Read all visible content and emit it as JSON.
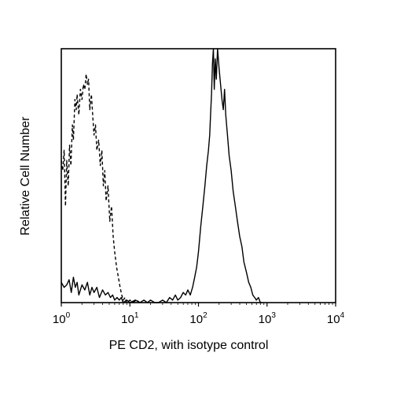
{
  "chart_data": {
    "type": "line",
    "title": "",
    "xlabel": "PE CD2, with isotype control",
    "ylabel": "Relative Cell Number",
    "x_scale": "log",
    "xlim": [
      1,
      10000
    ],
    "ylim": [
      0,
      100
    ],
    "x_ticks": [
      {
        "base": "10",
        "exp": "0",
        "value": 1
      },
      {
        "base": "10",
        "exp": "1",
        "value": 10
      },
      {
        "base": "10",
        "exp": "2",
        "value": 100
      },
      {
        "base": "10",
        "exp": "3",
        "value": 1000
      },
      {
        "base": "10",
        "exp": "4",
        "value": 10000
      }
    ],
    "grid": false,
    "legend": "none",
    "series": [
      {
        "style": "dashed",
        "color": "#000000",
        "x": [
          1.0,
          1.05,
          1.1,
          1.15,
          1.2,
          1.26,
          1.32,
          1.38,
          1.45,
          1.5,
          1.58,
          1.65,
          1.7,
          1.8,
          1.9,
          2.0,
          2.1,
          2.2,
          2.3,
          2.4,
          2.5,
          2.6,
          2.75,
          2.9,
          3.0,
          3.15,
          3.3,
          3.5,
          3.7,
          3.9,
          4.1,
          4.3,
          4.5,
          4.8,
          5.1,
          5.4,
          5.7,
          6.0,
          6.4,
          6.8,
          7.2,
          7.6,
          8.0,
          8.5,
          9.0,
          10.0,
          11.0,
          12.5,
          14.0
        ],
        "y": [
          56,
          52,
          60,
          38,
          56,
          46,
          62,
          54,
          70,
          64,
          80,
          76,
          82,
          74,
          84,
          80,
          86,
          84,
          90,
          86,
          88,
          76,
          82,
          72,
          66,
          70,
          60,
          64,
          54,
          60,
          46,
          52,
          40,
          46,
          32,
          38,
          26,
          20,
          14,
          10,
          6,
          3,
          1,
          2,
          0,
          1,
          0,
          1,
          0
        ]
      },
      {
        "style": "solid",
        "color": "#000000",
        "x": [
          1.0,
          1.1,
          1.2,
          1.3,
          1.4,
          1.5,
          1.6,
          1.7,
          1.8,
          2.0,
          2.2,
          2.4,
          2.6,
          2.8,
          3.0,
          3.3,
          3.6,
          4.0,
          4.4,
          4.8,
          5.2,
          5.6,
          6.0,
          6.5,
          7.0,
          7.5,
          8.0,
          9.0,
          10.0,
          12.0,
          14.0,
          16.0,
          18.0,
          20.0,
          23.0,
          26.0,
          30.0,
          34.0,
          38.0,
          42.0,
          46.0,
          50.0,
          55.0,
          60.0,
          65.0,
          70.0,
          76.0,
          82.0,
          88.0,
          94.0,
          100.0,
          108.0,
          116.0,
          124.0,
          132.0,
          140.0,
          146.0,
          150.0,
          155.0,
          160.0,
          165.0,
          170.0,
          176.0,
          182.0,
          190.0,
          200.0,
          210.0,
          220.0,
          230.0,
          240.0,
          250.0,
          265.0,
          280.0,
          300.0,
          320.0,
          345.0,
          370.0,
          400.0,
          430.0,
          460.0,
          500.0,
          540.0,
          580.0,
          620.0,
          660.0,
          700.0,
          750.0,
          800.0,
          850.0
        ],
        "y": [
          8,
          6,
          7,
          9,
          4,
          10,
          6,
          8,
          3,
          7,
          5,
          8,
          3,
          6,
          4,
          6,
          2,
          5,
          3,
          4,
          2,
          3,
          1,
          2,
          1,
          2,
          0,
          1,
          0,
          1,
          0,
          1,
          0,
          1,
          0,
          0,
          1,
          0,
          2,
          1,
          3,
          1,
          2,
          4,
          3,
          5,
          3,
          6,
          10,
          14,
          20,
          30,
          38,
          46,
          54,
          60,
          66,
          74,
          82,
          94,
          100,
          84,
          96,
          88,
          100,
          92,
          86,
          80,
          76,
          84,
          74,
          66,
          58,
          52,
          44,
          38,
          32,
          26,
          22,
          16,
          12,
          8,
          6,
          3,
          2,
          1,
          2,
          0,
          0
        ]
      }
    ]
  }
}
